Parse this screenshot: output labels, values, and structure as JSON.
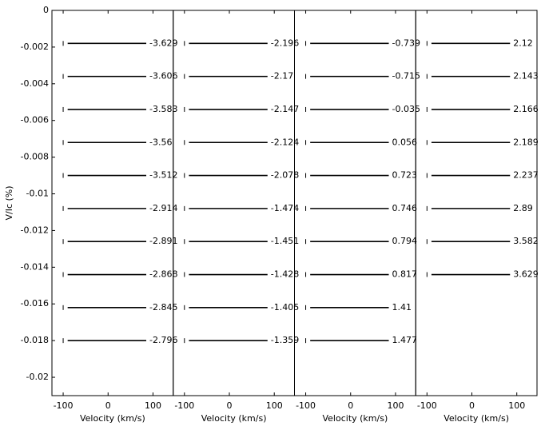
{
  "chart_data": [
    {
      "type": "line",
      "ylabel": "V/Ic (%)",
      "xlabel": "Velocity (km/s)",
      "xlim": [
        -125,
        145
      ],
      "xticks": [
        -100,
        0,
        100
      ],
      "ylim": [
        -0.021,
        0
      ],
      "yticks": [
        0,
        -0.002,
        -0.004,
        -0.006,
        -0.008,
        -0.01,
        -0.012,
        -0.014,
        -0.016,
        -0.018,
        -0.02
      ],
      "categories": [
        "-3.629",
        "-3.606",
        "-3.583",
        "-3.56",
        "-3.512",
        "-2.914",
        "-2.891",
        "-2.868",
        "-2.845",
        "-2.796"
      ],
      "values": [
        -0.0018,
        -0.0036,
        -0.0054,
        -0.0072,
        -0.009,
        -0.0108,
        -0.0126,
        -0.0144,
        -0.0162,
        -0.018
      ]
    },
    {
      "type": "line",
      "xlabel": "Velocity (km/s)",
      "xlim": [
        -125,
        145
      ],
      "xticks": [
        -100,
        0,
        100
      ],
      "ylim": [
        -0.021,
        0
      ],
      "categories": [
        "-2.196",
        "-2.17",
        "-2.147",
        "-2.124",
        "-2.078",
        "-1.474",
        "-1.451",
        "-1.428",
        "-1.405",
        "-1.359"
      ],
      "values": [
        -0.0018,
        -0.0036,
        -0.0054,
        -0.0072,
        -0.009,
        -0.0108,
        -0.0126,
        -0.0144,
        -0.0162,
        -0.018
      ]
    },
    {
      "type": "line",
      "xlabel": "Velocity (km/s)",
      "xlim": [
        -125,
        145
      ],
      "xticks": [
        -100,
        0,
        100
      ],
      "ylim": [
        -0.021,
        0
      ],
      "categories": [
        "-0.739",
        "-0.715",
        "-0.035",
        "0.056",
        "0.723",
        "0.746",
        "0.794",
        "0.817",
        "1.41",
        "1.477"
      ],
      "values": [
        -0.0018,
        -0.0036,
        -0.0054,
        -0.0072,
        -0.009,
        -0.0108,
        -0.0126,
        -0.0144,
        -0.0162,
        -0.018
      ]
    },
    {
      "type": "line",
      "xlabel": "Velocity (km/s)",
      "xlim": [
        -125,
        145
      ],
      "xticks": [
        -100,
        0,
        100
      ],
      "ylim": [
        -0.021,
        0
      ],
      "categories": [
        "2.12",
        "2.143",
        "2.166",
        "2.189",
        "2.237",
        "2.89",
        "3.582",
        "3.629"
      ],
      "values": [
        -0.0018,
        -0.0036,
        -0.0054,
        -0.0072,
        -0.009,
        -0.0108,
        -0.0126,
        -0.0144
      ]
    }
  ]
}
